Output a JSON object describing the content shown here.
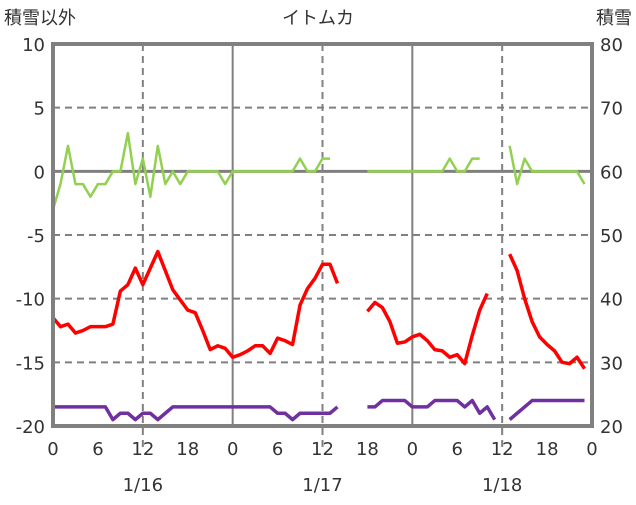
{
  "chart_data": {
    "type": "line",
    "title": "イトムカ",
    "ylabel_left": "積雪以外",
    "ylabel_right": "積雪",
    "ylim_left": [
      -20,
      10
    ],
    "ylim_right": [
      20,
      80
    ],
    "yticks_left": [
      "10",
      "5",
      "0",
      "-5",
      "-10",
      "-15",
      "-20"
    ],
    "yticks_right": [
      "80",
      "70",
      "60",
      "50",
      "40",
      "30",
      "20"
    ],
    "xticks": [
      "0",
      "6",
      "12",
      "18",
      "0",
      "6",
      "12",
      "18",
      "0",
      "6",
      "12",
      "18",
      "0"
    ],
    "date_labels": [
      "1/16",
      "1/17",
      "1/18"
    ],
    "x_hours": 72,
    "grid": true,
    "series": [
      {
        "name": "green",
        "color": "#92d050",
        "axis": "left",
        "values": [
          -3,
          -1,
          2,
          -1,
          -1,
          -2,
          -1,
          -1,
          0,
          0,
          3,
          -1,
          1,
          -2,
          2,
          -1,
          0,
          -1,
          0,
          0,
          0,
          0,
          0,
          -1,
          0,
          0,
          0,
          0,
          0,
          0,
          0,
          0,
          0,
          1,
          0,
          0,
          1,
          1,
          null,
          null,
          null,
          null,
          0,
          0,
          0,
          0,
          0,
          0,
          0,
          0,
          0,
          0,
          0,
          1,
          0,
          0,
          1,
          1,
          null,
          null,
          null,
          2,
          -1,
          1,
          0,
          0,
          0,
          0,
          0,
          0,
          0,
          -1,
          null
        ]
      },
      {
        "name": "red",
        "color": "#ff0000",
        "axis": "left",
        "values": [
          -11.5,
          -12.2,
          -12,
          -12.7,
          -12.5,
          -12.2,
          -12.2,
          -12.2,
          -12,
          -9.4,
          -8.9,
          -7.6,
          -8.9,
          -7.6,
          -6.3,
          -7.8,
          -9.3,
          -10.1,
          -10.9,
          -11.1,
          -12.5,
          -14,
          -13.7,
          -13.9,
          -14.6,
          -14.4,
          -14.1,
          -13.7,
          -13.7,
          -14.3,
          -13.1,
          -13.3,
          -13.6,
          -10.5,
          -9.2,
          -8.4,
          -7.3,
          -7.3,
          -8.8,
          null,
          null,
          null,
          -11,
          -10.3,
          -10.7,
          -11.8,
          -13.5,
          -13.4,
          -13,
          -12.8,
          -13.3,
          -14,
          -14.1,
          -14.6,
          -14.4,
          -15.1,
          -12.9,
          -10.9,
          -9.6,
          null,
          null,
          -6.5,
          -7.8,
          -10,
          -11.8,
          -13,
          -13.6,
          -14.1,
          -15,
          -15.1,
          -14.6,
          -15.5,
          null
        ]
      },
      {
        "name": "purple",
        "color": "#7030a0",
        "axis": "right",
        "values": [
          23,
          23,
          23,
          23,
          23,
          23,
          23,
          23,
          21,
          22,
          22,
          21,
          22,
          22,
          21,
          22,
          23,
          23,
          23,
          23,
          23,
          23,
          23,
          23,
          23,
          23,
          23,
          23,
          23,
          23,
          22,
          22,
          21,
          22,
          22,
          22,
          22,
          22,
          23,
          null,
          null,
          null,
          23,
          23,
          24,
          24,
          24,
          24,
          23,
          23,
          23,
          24,
          24,
          24,
          24,
          23,
          24,
          22,
          23,
          21,
          null,
          21,
          22,
          23,
          24,
          24,
          24,
          24,
          24,
          24,
          24,
          24,
          null
        ]
      }
    ]
  }
}
